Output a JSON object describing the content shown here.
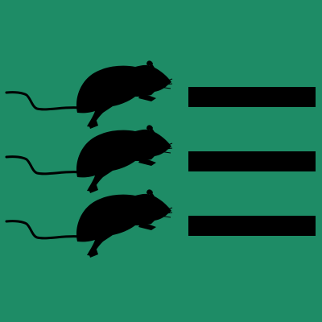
{
  "colors": {
    "background": "#1e8c66",
    "ink": "#000000"
  },
  "rows": [
    {
      "icon": "rat-icon",
      "indicator": "bar"
    },
    {
      "icon": "rat-icon",
      "indicator": "bar"
    },
    {
      "icon": "rat-icon",
      "indicator": "bar"
    }
  ]
}
